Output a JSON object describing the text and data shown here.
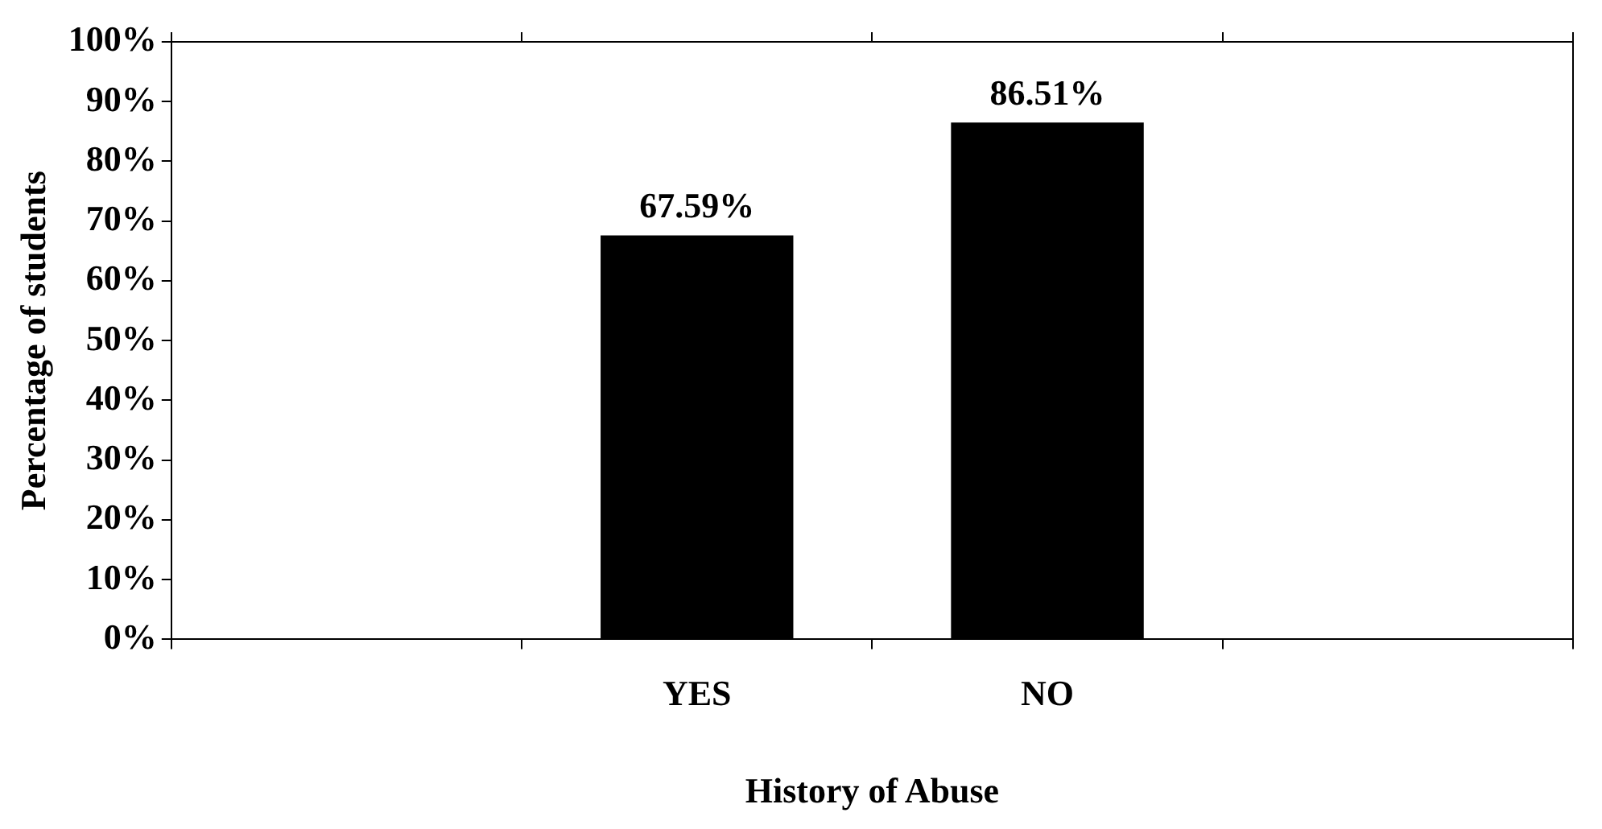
{
  "chart_data": {
    "type": "bar",
    "xlabel": "History of Abuse",
    "ylabel": "Percentage of students",
    "categories": [
      null,
      "YES",
      "NO",
      null
    ],
    "values": [
      null,
      67.59,
      86.51,
      null
    ],
    "value_labels": [
      null,
      "67.59%",
      "86.51%",
      null
    ],
    "color": "#000000",
    "ylim": [
      0,
      100
    ],
    "yticks": [
      {
        "value": 0,
        "label": "0%"
      },
      {
        "value": 10,
        "label": "10%"
      },
      {
        "value": 20,
        "label": "20%"
      },
      {
        "value": 30,
        "label": "30%"
      },
      {
        "value": 40,
        "label": "40%"
      },
      {
        "value": 50,
        "label": "50%"
      },
      {
        "value": 60,
        "label": "60%"
      },
      {
        "value": 70,
        "label": "70%"
      },
      {
        "value": 80,
        "label": "80%"
      },
      {
        "value": 90,
        "label": "90%"
      },
      {
        "value": 100,
        "label": "100%"
      }
    ],
    "grid": false,
    "legend": false
  }
}
